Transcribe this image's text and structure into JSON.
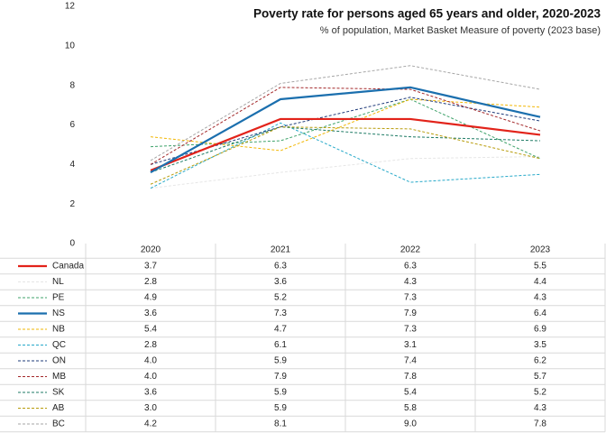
{
  "chart_data": {
    "type": "line",
    "title": "Poverty rate for persons aged 65 years and older, 2020-2023",
    "subtitle": "% of population, Market Basket Measure of poverty (2023 base)",
    "categories": [
      "2020",
      "2021",
      "2022",
      "2023"
    ],
    "ylim": [
      0,
      12
    ],
    "yticks": [
      0,
      2,
      4,
      6,
      8,
      10,
      12
    ],
    "grid": false,
    "series": [
      {
        "name": "Canada",
        "color": "#e2231a",
        "line_style": "solid",
        "values": [
          3.7,
          6.3,
          6.3,
          5.5
        ],
        "value_labels": [
          "3.7",
          "6.3",
          "6.3",
          "5.5"
        ]
      },
      {
        "name": "NL",
        "color": "#e6e6e6",
        "line_style": "dashed",
        "values": [
          2.8,
          3.6,
          4.3,
          4.4
        ],
        "value_labels": [
          "2.8",
          "3.6",
          "4.3",
          "4.4"
        ]
      },
      {
        "name": "PE",
        "color": "#3fa36b",
        "line_style": "dashed",
        "values": [
          4.9,
          5.2,
          7.3,
          4.3
        ],
        "value_labels": [
          "4.9",
          "5.2",
          "7.3",
          "4.3"
        ]
      },
      {
        "name": "NS",
        "color": "#1b6fae",
        "line_style": "solid",
        "values": [
          3.6,
          7.3,
          7.9,
          6.4
        ],
        "value_labels": [
          "3.6",
          "7.3",
          "7.9",
          "6.4"
        ]
      },
      {
        "name": "NB",
        "color": "#f2b705",
        "line_style": "dashed",
        "values": [
          5.4,
          4.7,
          7.3,
          6.9
        ],
        "value_labels": [
          "5.4",
          "4.7",
          "7.3",
          "6.9"
        ]
      },
      {
        "name": "QC",
        "color": "#27a9c9",
        "line_style": "dashed",
        "values": [
          2.8,
          6.1,
          3.1,
          3.5
        ],
        "value_labels": [
          "2.8",
          "6.1",
          "3.1",
          "3.5"
        ]
      },
      {
        "name": "ON",
        "color": "#1f3b7a",
        "line_style": "dashed",
        "values": [
          4.0,
          5.9,
          7.4,
          6.2
        ],
        "value_labels": [
          "4.0",
          "5.9",
          "7.4",
          "6.2"
        ]
      },
      {
        "name": "MB",
        "color": "#a3282a",
        "line_style": "dashed",
        "values": [
          4.0,
          7.9,
          7.8,
          5.7
        ],
        "value_labels": [
          "4.0",
          "7.9",
          "7.8",
          "5.7"
        ]
      },
      {
        "name": "SK",
        "color": "#1d7a64",
        "line_style": "dashed",
        "values": [
          3.6,
          5.9,
          5.4,
          5.2
        ],
        "value_labels": [
          "3.6",
          "5.9",
          "5.4",
          "5.2"
        ]
      },
      {
        "name": "AB",
        "color": "#b89c0c",
        "line_style": "dashed",
        "values": [
          3.0,
          5.9,
          5.8,
          4.3
        ],
        "value_labels": [
          "3.0",
          "5.9",
          "5.8",
          "4.3"
        ]
      },
      {
        "name": "BC",
        "color": "#a6a6a6",
        "line_style": "dashed",
        "values": [
          4.2,
          8.1,
          9.0,
          7.8
        ],
        "value_labels": [
          "4.2",
          "8.1",
          "9.0",
          "7.8"
        ]
      }
    ]
  }
}
